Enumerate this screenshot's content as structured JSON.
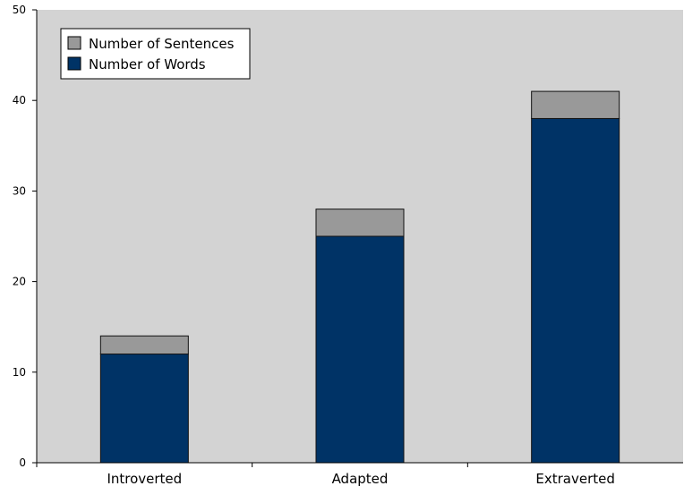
{
  "chart_data": {
    "type": "bar",
    "stacked": true,
    "categories": [
      "Introverted",
      "Adapted",
      "Extraverted"
    ],
    "series": [
      {
        "name": "Number of Words",
        "values": [
          12,
          25,
          38
        ],
        "color": "#003366"
      },
      {
        "name": "Number of Sentences",
        "values": [
          2,
          3,
          3
        ],
        "color": "#999999"
      }
    ],
    "legend": {
      "placement": "top-left",
      "entries": [
        {
          "label": "Number of Sentences",
          "color": "#999999"
        },
        {
          "label": "Number of Words",
          "color": "#003366"
        }
      ]
    },
    "ylim": [
      0,
      50
    ],
    "yticks": [
      "0",
      "10",
      "20",
      "30",
      "40",
      "50"
    ],
    "grid": false,
    "plot_background": "#d3d3d3"
  }
}
